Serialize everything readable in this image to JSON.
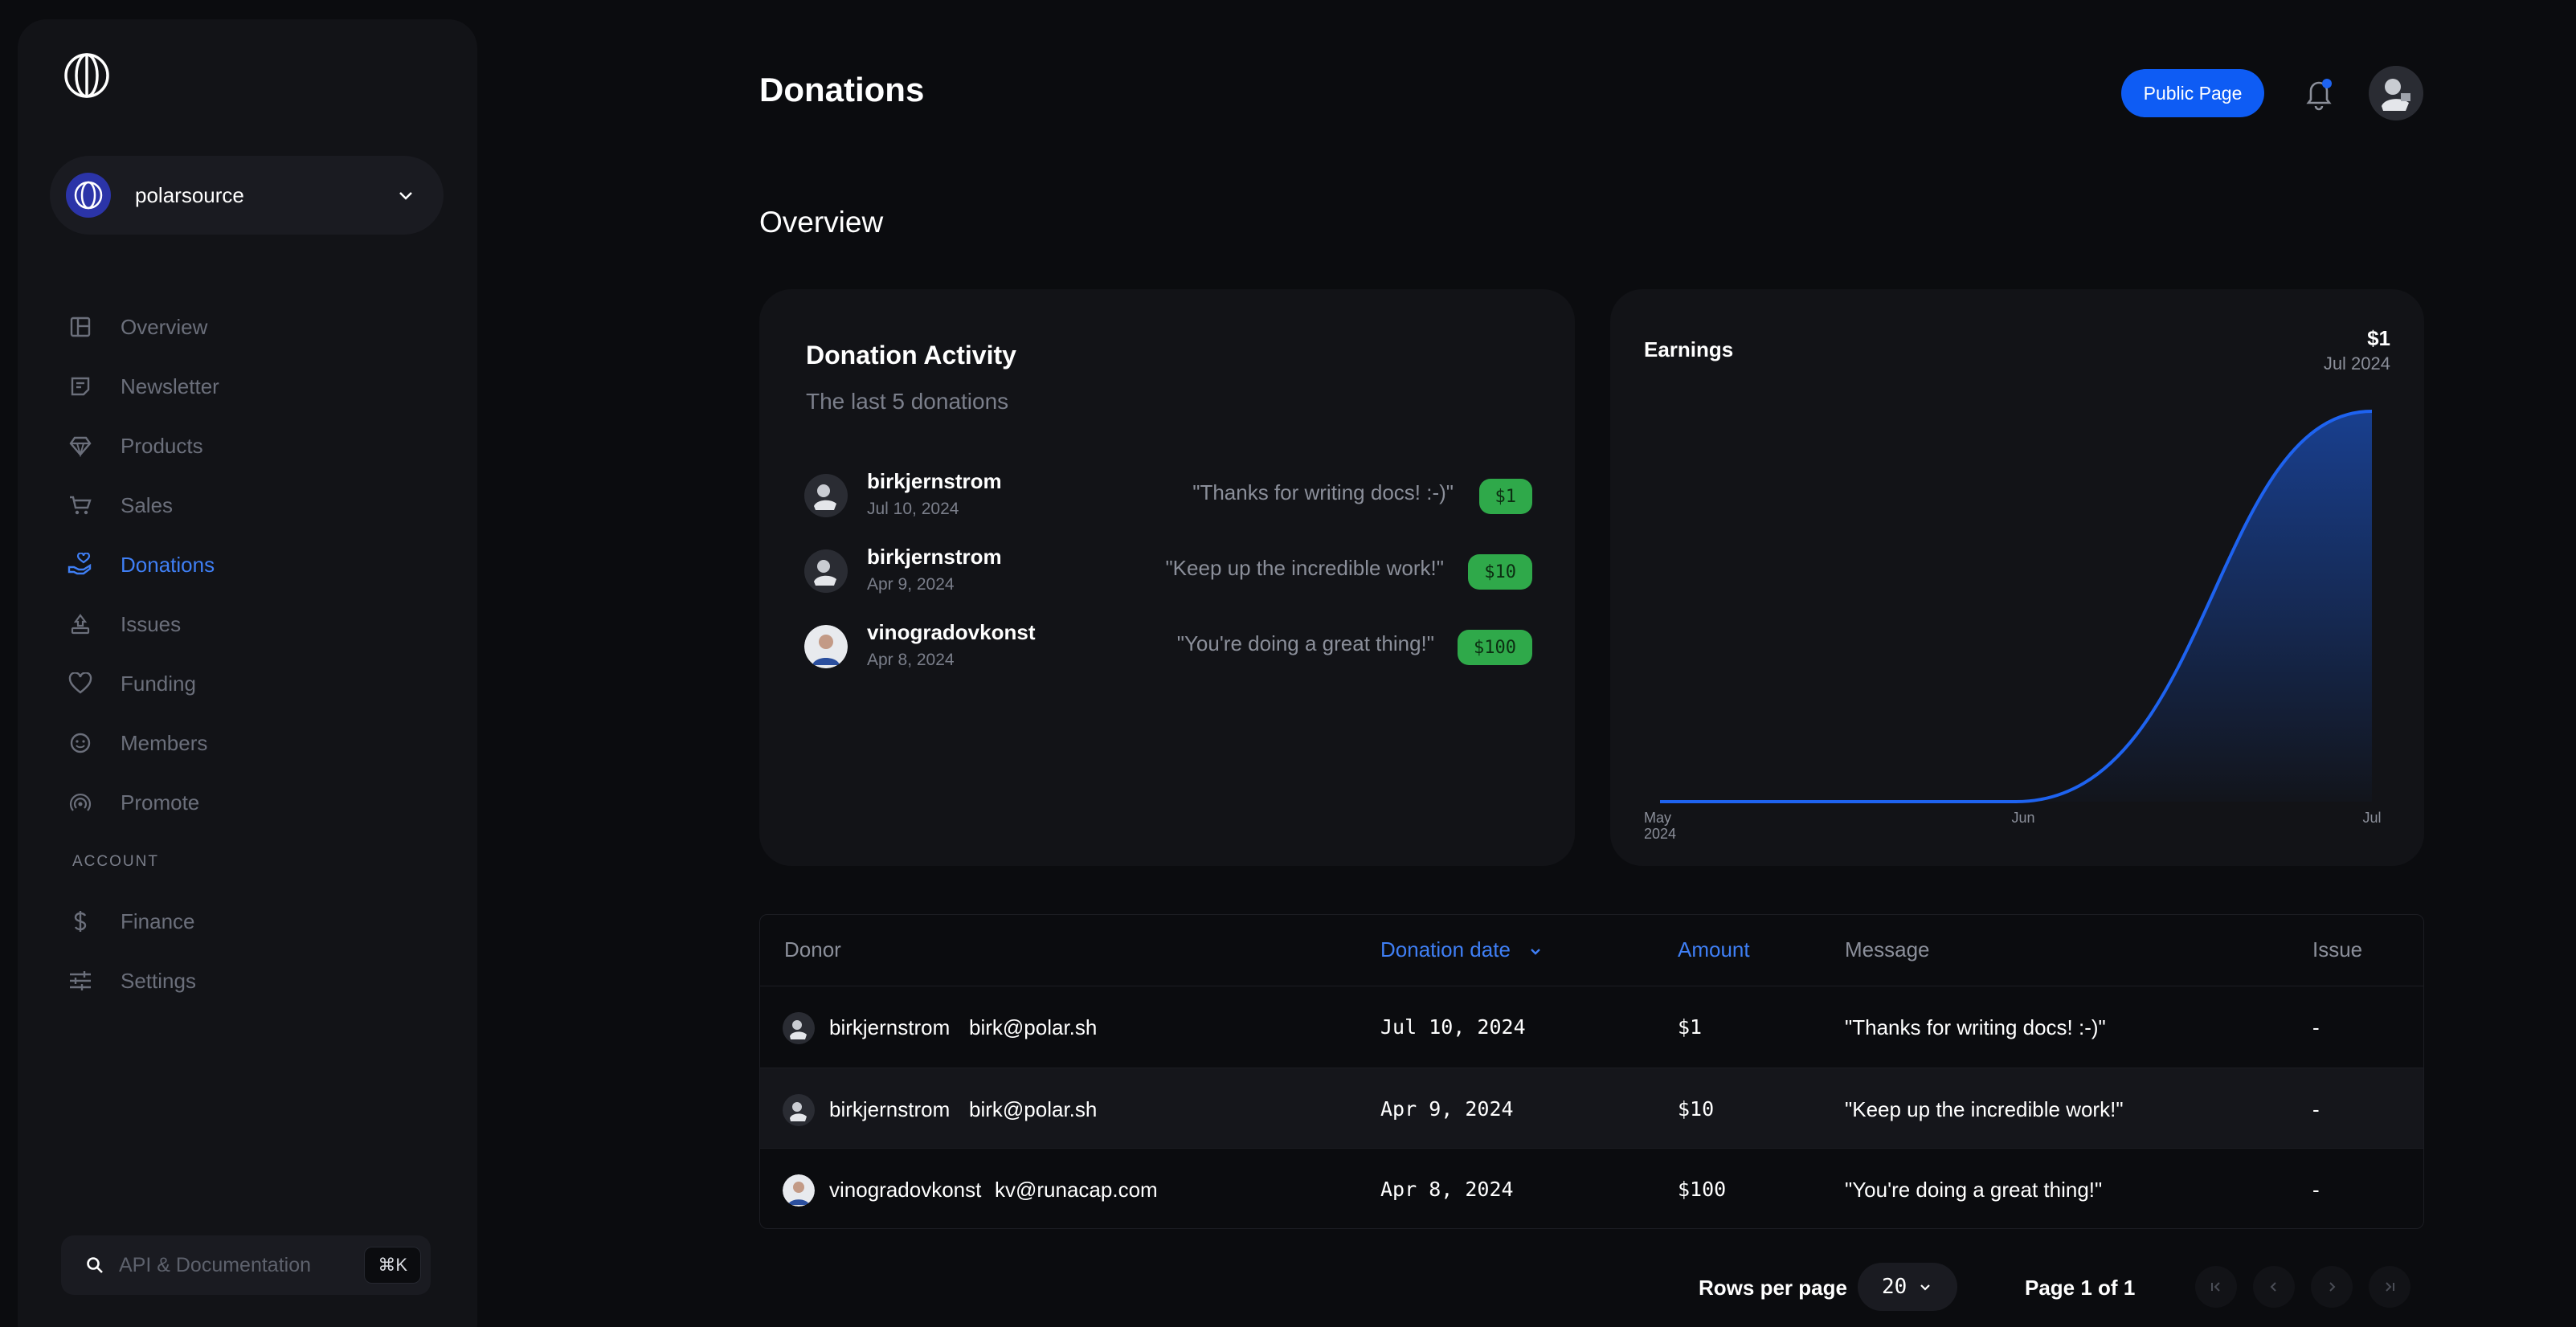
{
  "sidebar": {
    "org_name": "polarsource",
    "nav": [
      {
        "label": "Overview",
        "icon": "layout-icon"
      },
      {
        "label": "Newsletter",
        "icon": "newsletter-icon"
      },
      {
        "label": "Products",
        "icon": "diamond-icon"
      },
      {
        "label": "Sales",
        "icon": "cart-icon"
      },
      {
        "label": "Donations",
        "icon": "donation-hand-icon",
        "active": true
      },
      {
        "label": "Issues",
        "icon": "issues-icon"
      },
      {
        "label": "Funding",
        "icon": "heart-icon"
      },
      {
        "label": "Members",
        "icon": "members-icon"
      },
      {
        "label": "Promote",
        "icon": "broadcast-icon"
      }
    ],
    "account_label": "ACCOUNT",
    "account_nav": [
      {
        "label": "Finance",
        "icon": "dollar-icon"
      },
      {
        "label": "Settings",
        "icon": "sliders-icon"
      }
    ],
    "search_placeholder": "API & Documentation",
    "search_shortcut": "⌘K"
  },
  "header": {
    "title": "Donations",
    "public_page_label": "Public Page"
  },
  "overview_label": "Overview",
  "activity": {
    "title": "Donation Activity",
    "subtitle": "The last 5 donations",
    "items": [
      {
        "name": "birkjernstrom",
        "date": "Jul 10, 2024",
        "message": "\"Thanks for writing docs! :-)\"",
        "amount": "$1"
      },
      {
        "name": "birkjernstrom",
        "date": "Apr 9, 2024",
        "message": "\"Keep up the incredible work!\"",
        "amount": "$10"
      },
      {
        "name": "vinogradovkonst",
        "date": "Apr 8, 2024",
        "message": "\"You're doing a great thing!\"",
        "amount": "$100"
      }
    ]
  },
  "earnings": {
    "title": "Earnings",
    "amount": "$1",
    "period": "Jul 2024",
    "accent": "#1e63f0"
  },
  "chart_data": {
    "type": "area",
    "title": "Earnings",
    "x": [
      "May 2024",
      "Jun",
      "Jul"
    ],
    "tick_labels": [
      [
        "May",
        "2024"
      ],
      [
        "Jun"
      ],
      [
        "Jul"
      ]
    ],
    "series": [
      {
        "values": [
          0,
          0,
          1
        ]
      }
    ],
    "ylim": [
      0,
      1
    ],
    "grid": false
  },
  "table": {
    "columns": [
      "Donor",
      "Donation date",
      "Amount",
      "Message",
      "Issue"
    ],
    "sorted_column": "Donation date",
    "rows": [
      {
        "donor": "birkjernstrom",
        "email": "birk@polar.sh",
        "date": "Jul 10, 2024",
        "amount": "$1",
        "message": "\"Thanks for writing docs! :-)\"",
        "issue": "-"
      },
      {
        "donor": "birkjernstrom",
        "email": "birk@polar.sh",
        "date": "Apr 9, 2024",
        "amount": "$10",
        "message": "\"Keep up the incredible work!\"",
        "issue": "-"
      },
      {
        "donor": "vinogradovkonst",
        "email": "kv@runacap.com",
        "date": "Apr 8, 2024",
        "amount": "$100",
        "message": "\"You're doing a great thing!\"",
        "issue": "-"
      }
    ]
  },
  "pagination": {
    "rows_per_page_label": "Rows per page",
    "rows_per_page": "20",
    "page_label": "Page 1 of 1"
  }
}
